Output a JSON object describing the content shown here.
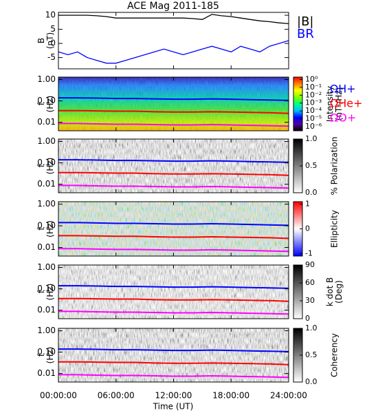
{
  "title": "ACE Mag 2011-185",
  "x_label": "Time (UT)",
  "chart_data": [
    {
      "type": "line",
      "ylabel": [
        "B",
        "(nT)"
      ],
      "xlim": [
        0,
        24
      ],
      "ylim": [
        -9,
        11
      ],
      "yticks": [
        10,
        5,
        0,
        -5
      ],
      "x": [
        0,
        1,
        2,
        3,
        4,
        5,
        6,
        7,
        8,
        9,
        10,
        11,
        12,
        13,
        14,
        15,
        16,
        17,
        18,
        19,
        20,
        21,
        22,
        23,
        24
      ],
      "series": [
        {
          "name": "|B|",
          "color": "#000000",
          "values": [
            10,
            10,
            10,
            10,
            9.8,
            9.5,
            9,
            9,
            9,
            9,
            9,
            9,
            9,
            9,
            8.8,
            8.5,
            10.3,
            9.8,
            9.5,
            9,
            8.5,
            8,
            7.7,
            7.3,
            7
          ]
        },
        {
          "name": "BR",
          "color": "#0000ff",
          "values": [
            -3,
            -4,
            -3,
            -5,
            -6,
            -7,
            -7,
            -6,
            -5,
            -4,
            -3,
            -2,
            -3,
            -4,
            -3,
            -2,
            -1,
            -2,
            -3,
            -1,
            -2,
            -3,
            -1,
            0,
            1
          ]
        }
      ]
    },
    {
      "type": "spectrogram",
      "ylabel": [
        "f",
        "(Hz)"
      ],
      "log": true,
      "xlim": [
        0,
        24
      ],
      "ylim": [
        0.004,
        1.3
      ],
      "yticks": [
        {
          "value": 1,
          "label": "1.00"
        },
        {
          "value": 0.1,
          "label": "0.10"
        },
        {
          "value": 0.01,
          "label": "0.01"
        }
      ],
      "zlabel": [
        "Intensity",
        "(nT²/Hz)"
      ],
      "zlog": true,
      "zlim": [
        3e-07,
        2
      ],
      "zticks": [
        {
          "value": 1,
          "label": "10⁰"
        },
        {
          "value": 0.1,
          "label": "10⁻¹"
        },
        {
          "value": 0.01,
          "label": "10⁻²"
        },
        {
          "value": 0.001,
          "label": "10⁻³"
        },
        {
          "value": 0.0001,
          "label": "10⁻⁴"
        },
        {
          "value": 1e-05,
          "label": "10⁻⁵"
        },
        {
          "value": 1e-06,
          "label": "10⁻⁶"
        }
      ],
      "colormap": [
        "#000000",
        "#5000a0",
        "#0000ff",
        "#00c0ff",
        "#00ff80",
        "#80ff00",
        "#ffff00",
        "#ff8000",
        "#ff0000"
      ],
      "x": [
        0,
        2,
        4,
        6,
        8,
        10,
        12,
        14,
        16,
        18,
        20,
        22,
        24
      ],
      "series": [
        {
          "name": "ΩH+",
          "color": "#0000ff",
          "values": [
            0.14,
            0.14,
            0.135,
            0.13,
            0.13,
            0.125,
            0.12,
            0.12,
            0.125,
            0.12,
            0.115,
            0.11,
            0.105
          ]
        },
        {
          "name": "ΩHe+",
          "color": "#ff0000",
          "values": [
            0.035,
            0.035,
            0.034,
            0.033,
            0.033,
            0.031,
            0.03,
            0.03,
            0.031,
            0.03,
            0.029,
            0.028,
            0.026
          ]
        },
        {
          "name": "ΩO+",
          "color": "#ff00ff",
          "values": [
            0.0088,
            0.0088,
            0.0084,
            0.0081,
            0.0081,
            0.0078,
            0.0075,
            0.0075,
            0.0078,
            0.0075,
            0.0072,
            0.0069,
            0.0066
          ]
        }
      ]
    },
    {
      "type": "spectrogram",
      "ylabel": [
        "f",
        "(Hz)"
      ],
      "log": true,
      "ylim": [
        0.004,
        1.3
      ],
      "yticks": [
        {
          "value": 1,
          "label": "1.00"
        },
        {
          "value": 0.1,
          "label": "0.10"
        },
        {
          "value": 0.01,
          "label": "0.01"
        }
      ],
      "zlabel": [
        "% Polarization"
      ],
      "zlim": [
        0,
        1
      ],
      "zticks": [
        {
          "value": 1,
          "label": "1.0"
        },
        0.5,
        {
          "value": 0,
          "label": "0.0"
        }
      ],
      "colormap": [
        "#ffffff",
        "#000000"
      ]
    },
    {
      "type": "spectrogram",
      "ylabel": [
        "f",
        "(Hz)"
      ],
      "log": true,
      "ylim": [
        0.004,
        1.3
      ],
      "yticks": [
        {
          "value": 1,
          "label": "1.00"
        },
        {
          "value": 0.1,
          "label": "0.10"
        },
        {
          "value": 0.01,
          "label": "0.01"
        }
      ],
      "zlabel": [
        "Ellipticity"
      ],
      "zlim": [
        -1.1,
        1.1
      ],
      "zticks": [
        1,
        0,
        -1
      ],
      "colormap": [
        "#0000ff",
        "#ffffff",
        "#ff0000"
      ]
    },
    {
      "type": "spectrogram",
      "ylabel": [
        "f",
        "(Hz)"
      ],
      "log": true,
      "ylim": [
        0.004,
        1.3
      ],
      "yticks": [
        {
          "value": 1,
          "label": "1.00"
        },
        {
          "value": 0.1,
          "label": "0.10"
        },
        {
          "value": 0.01,
          "label": "0.01"
        }
      ],
      "zlabel": [
        "k dot B",
        "(Deg)"
      ],
      "zlim": [
        0,
        90
      ],
      "zticks": [
        90,
        60,
        30,
        0
      ],
      "colormap": [
        "#ffffff",
        "#000000"
      ]
    },
    {
      "type": "spectrogram",
      "ylabel": [
        "f",
        "(Hz)"
      ],
      "log": true,
      "ylim": [
        0.004,
        1.3
      ],
      "yticks": [
        {
          "value": 1,
          "label": "1.00"
        },
        {
          "value": 0.1,
          "label": "0.10"
        },
        {
          "value": 0.01,
          "label": "0.01"
        }
      ],
      "zlabel": [
        "Coherency"
      ],
      "zlim": [
        0,
        1
      ],
      "zticks": [
        {
          "value": 1,
          "label": "1.0"
        },
        0.5,
        {
          "value": 0,
          "label": "0.0"
        }
      ],
      "colormap": [
        "#ffffff",
        "#000000"
      ],
      "xticks": [
        {
          "value": 0,
          "label": "00:00:00"
        },
        {
          "value": 6,
          "label": "06:00:00"
        },
        {
          "value": 12,
          "label": "12:00:00"
        },
        {
          "value": 18,
          "label": "18:00:00"
        },
        {
          "value": 24,
          "label": "24:00:00"
        }
      ]
    }
  ]
}
